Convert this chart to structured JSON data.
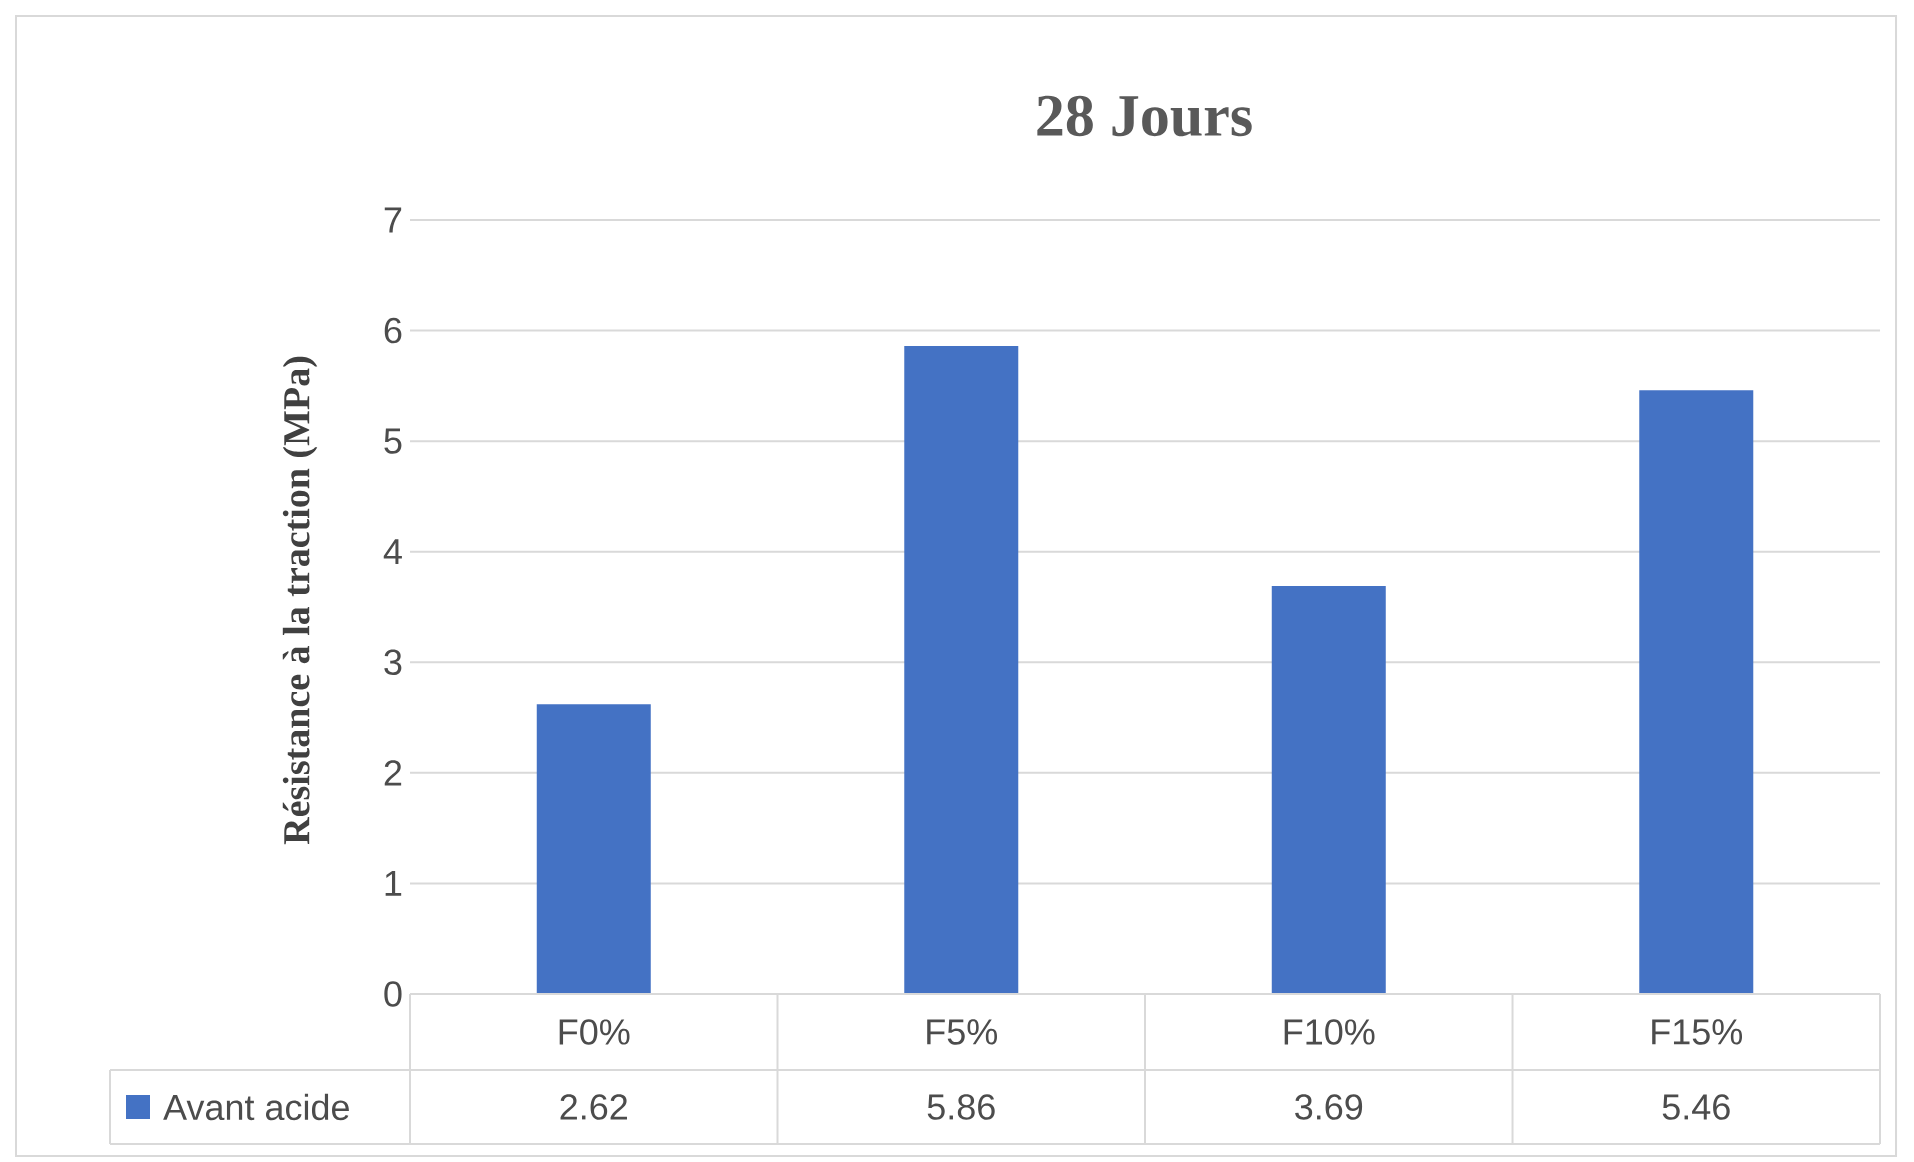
{
  "chart_data": {
    "type": "bar",
    "title": "28 Jours",
    "ylabel": "Résistance à la traction (MPa)",
    "categories": [
      "F0%",
      "F5%",
      "F10%",
      "F15%"
    ],
    "series": [
      {
        "name": "Avant acide",
        "color": "#4472c4",
        "values": [
          2.62,
          5.86,
          3.69,
          5.46
        ]
      }
    ],
    "ylim": [
      0,
      7
    ],
    "yticks": [
      0,
      1,
      2,
      3,
      4,
      5,
      6,
      7
    ],
    "grid": "y",
    "data_labels": true,
    "legend": "bottom"
  }
}
